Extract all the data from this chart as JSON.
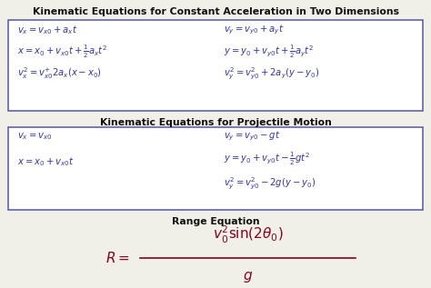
{
  "bg_color": "#f0f0e8",
  "box_edge_color": "#5555aa",
  "title1": "Kinematic Equations for Constant Acceleration in Two Dimensions",
  "title2": "Kinematic Equations for Projectile Motion",
  "title3": "Range Equation",
  "title_color": "#111111",
  "eq_color": "#3333aa",
  "range_eq_color": "#880022",
  "box1_eqs_left": [
    "$v_x = v_{x0} + a_x t$",
    "$x = x_0 + v_{x0}t + \\frac{1}{2}a_x t^2$",
    "$v_x^2 = v_{x0}^{+}2a_x(x - x_0)$"
  ],
  "box1_eqs_right": [
    "$v_y = v_{y0} + a_y t$",
    "$y = y_0 + v_{y0}t + \\frac{1}{2}a_y t^2$",
    "$v_y^2 = v_{y0}^2 + 2a_y(y - y_0)$"
  ],
  "box2_eqs_left": [
    "$v_x = v_{x0}$",
    "$x = x_0 + v_{x0}t$"
  ],
  "box2_eqs_right": [
    "$v_y = v_{y0} - gt$",
    "$y = y_0 + v_{y0}t - \\frac{1}{2}gt^2$",
    "$v_y^2 = v_{y0}^2 - 2g(y - y_0)$"
  ],
  "range_eq_num": "$v_0^2 \\sin(2\\theta_0)$",
  "range_eq_den": "$g$",
  "range_eq_lhs": "$R = $",
  "fig_width": 4.74,
  "fig_height": 3.17,
  "dpi": 100
}
